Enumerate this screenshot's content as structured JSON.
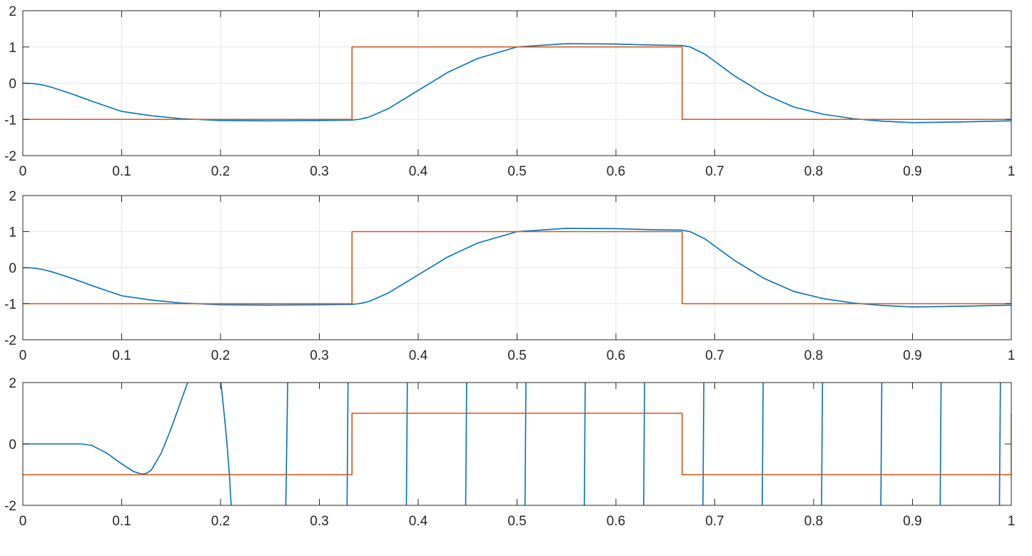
{
  "colors": {
    "series1": "#0072BD",
    "series2": "#D95319",
    "axes": "#262626",
    "grid": "#E6E6E6",
    "background": "#FFFFFF"
  },
  "chart_data": [
    {
      "type": "line",
      "title": "",
      "xlabel": "",
      "ylabel": "",
      "xlim": [
        0,
        1
      ],
      "ylim": [
        -2,
        2
      ],
      "xticks": [
        0,
        0.1,
        0.2,
        0.3,
        0.4,
        0.5,
        0.6,
        0.7,
        0.8,
        0.9,
        1
      ],
      "xtick_labels": [
        "0",
        "0.1",
        "0.2",
        "0.3",
        "0.4",
        "0.5",
        "0.6",
        "0.7",
        "0.8",
        "0.9",
        "1"
      ],
      "yticks": [
        -2,
        -1,
        0,
        1,
        2
      ],
      "ytick_labels": [
        "-2",
        "-1",
        "0",
        "1",
        "2"
      ],
      "grid": true,
      "series": [
        {
          "color": "#0072BD",
          "x": [
            0,
            0.01,
            0.02,
            0.03,
            0.05,
            0.07,
            0.1,
            0.13,
            0.16,
            0.2,
            0.25,
            0.3,
            0.333,
            0.34,
            0.35,
            0.37,
            0.4,
            0.43,
            0.46,
            0.5,
            0.55,
            0.6,
            0.64,
            0.667,
            0.675,
            0.69,
            0.72,
            0.75,
            0.78,
            0.81,
            0.84,
            0.87,
            0.9,
            0.95,
            1
          ],
          "y": [
            0,
            -0.01,
            -0.05,
            -0.12,
            -0.3,
            -0.5,
            -0.78,
            -0.9,
            -0.98,
            -1.03,
            -1.04,
            -1.03,
            -1.02,
            -1.0,
            -0.94,
            -0.7,
            -0.2,
            0.3,
            0.68,
            1.0,
            1.09,
            1.08,
            1.05,
            1.04,
            1.0,
            0.8,
            0.2,
            -0.3,
            -0.66,
            -0.86,
            -0.98,
            -1.05,
            -1.09,
            -1.07,
            -1.04
          ]
        },
        {
          "color": "#D95319",
          "x": [
            0,
            0.333,
            0.333,
            0.667,
            0.667,
            1,
            1
          ],
          "y": [
            -1,
            -1,
            1,
            1,
            -1,
            -1,
            1
          ]
        }
      ]
    },
    {
      "type": "line",
      "title": "",
      "xlabel": "",
      "ylabel": "",
      "xlim": [
        0,
        1
      ],
      "ylim": [
        -2,
        2
      ],
      "xticks": [
        0,
        0.1,
        0.2,
        0.3,
        0.4,
        0.5,
        0.6,
        0.7,
        0.8,
        0.9,
        1
      ],
      "xtick_labels": [
        "0",
        "0.1",
        "0.2",
        "0.3",
        "0.4",
        "0.5",
        "0.6",
        "0.7",
        "0.8",
        "0.9",
        "1"
      ],
      "yticks": [
        -2,
        -1,
        0,
        1,
        2
      ],
      "ytick_labels": [
        "-2",
        "-1",
        "0",
        "1",
        "2"
      ],
      "grid": true,
      "series": [
        {
          "color": "#0072BD",
          "x": [
            0,
            0.01,
            0.02,
            0.03,
            0.05,
            0.07,
            0.1,
            0.13,
            0.16,
            0.2,
            0.25,
            0.3,
            0.333,
            0.34,
            0.35,
            0.37,
            0.4,
            0.43,
            0.46,
            0.5,
            0.55,
            0.6,
            0.64,
            0.667,
            0.675,
            0.69,
            0.72,
            0.75,
            0.78,
            0.81,
            0.84,
            0.87,
            0.9,
            0.95,
            1
          ],
          "y": [
            0,
            -0.01,
            -0.05,
            -0.12,
            -0.3,
            -0.5,
            -0.78,
            -0.9,
            -0.98,
            -1.03,
            -1.04,
            -1.03,
            -1.02,
            -1.0,
            -0.94,
            -0.7,
            -0.2,
            0.3,
            0.68,
            1.0,
            1.09,
            1.08,
            1.05,
            1.04,
            1.0,
            0.8,
            0.2,
            -0.3,
            -0.66,
            -0.86,
            -0.98,
            -1.05,
            -1.09,
            -1.07,
            -1.04
          ]
        },
        {
          "color": "#D95319",
          "x": [
            0,
            0.333,
            0.333,
            0.667,
            0.667,
            1,
            1
          ],
          "y": [
            -1,
            -1,
            1,
            1,
            -1,
            -1,
            1
          ]
        }
      ]
    },
    {
      "type": "line",
      "title": "",
      "xlabel": "",
      "ylabel": "",
      "xlim": [
        0,
        1
      ],
      "ylim": [
        -2,
        2
      ],
      "xticks": [
        0,
        0.1,
        0.2,
        0.3,
        0.4,
        0.5,
        0.6,
        0.7,
        0.8,
        0.9,
        1
      ],
      "xtick_labels": [
        "0",
        "0.1",
        "0.2",
        "0.3",
        "0.4",
        "0.5",
        "0.6",
        "0.7",
        "0.8",
        "0.9",
        "1"
      ],
      "yticks": [
        -2,
        0,
        2
      ],
      "ytick_labels": [
        "-2",
        "0",
        "2"
      ],
      "grid": false,
      "series": [
        {
          "color": "#0072BD",
          "x": [
            0,
            0.03,
            0.06,
            0.07,
            0.085,
            0.1,
            0.112,
            0.12,
            0.125,
            0.13,
            0.14,
            0.15,
            0.16,
            0.165,
            0.168,
            null,
            0.2,
            0.203,
            0.206,
            0.209,
            0.21,
            0.211,
            null,
            0.266,
            0.268,
            null,
            0.328,
            0.329,
            null,
            0.388,
            0.389,
            null,
            0.448,
            0.449,
            null,
            0.508,
            0.509,
            null,
            0.568,
            0.569,
            null,
            0.628,
            0.629,
            null,
            0.688,
            0.689,
            null,
            0.748,
            0.749,
            null,
            0.808,
            0.809,
            null,
            0.868,
            0.869,
            null,
            0.928,
            0.929,
            null,
            0.988,
            0.989
          ],
          "y": [
            0,
            0,
            0,
            -0.05,
            -0.3,
            -0.65,
            -0.9,
            -0.98,
            -0.96,
            -0.85,
            -0.3,
            0.5,
            1.4,
            1.85,
            2.1,
            null,
            2.1,
            1.2,
            0.2,
            -1.0,
            -1.6,
            -2.1,
            null,
            -2.1,
            2.1,
            null,
            -2.1,
            2.1,
            null,
            -2.1,
            2.1,
            null,
            -2.1,
            2.1,
            null,
            -2.1,
            2.1,
            null,
            -2.1,
            2.1,
            null,
            -2.1,
            2.1,
            null,
            -2.1,
            2.1,
            null,
            -2.1,
            2.1,
            null,
            -2.1,
            2.1,
            null,
            -2.1,
            2.1,
            null,
            -2.1,
            2.1,
            null,
            -2.1,
            2.1
          ]
        },
        {
          "color": "#D95319",
          "x": [
            0,
            0.333,
            0.333,
            0.667,
            0.667,
            1,
            1
          ],
          "y": [
            -1,
            -1,
            1,
            1,
            -1,
            -1,
            1
          ]
        }
      ]
    }
  ]
}
